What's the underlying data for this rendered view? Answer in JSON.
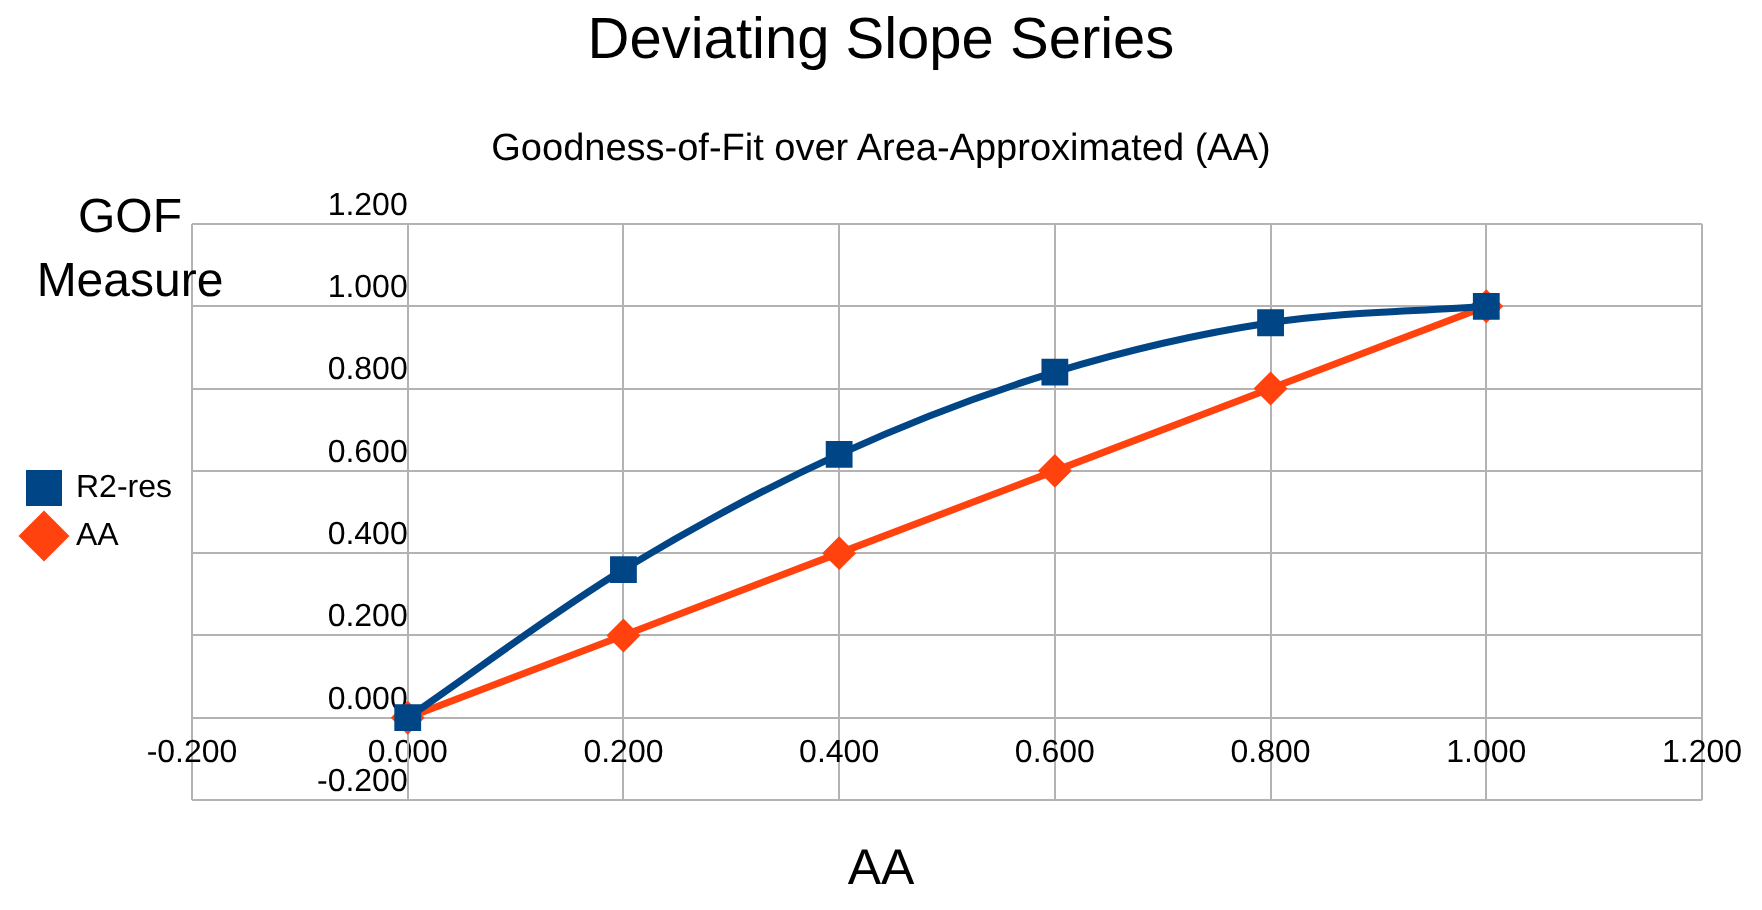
{
  "chart_data": {
    "type": "line",
    "title": "Deviating Slope Series",
    "subtitle": "Goodness-of-Fit over Area-Approximated (AA)",
    "xlabel": "AA",
    "ylabel": "GOF Measure",
    "x": [
      0,
      0.2,
      0.4,
      0.6,
      0.8,
      1.0
    ],
    "series": [
      {
        "name": "R2-res",
        "color": "#004586",
        "marker": "square",
        "values": [
          0,
          0.36,
          0.64,
          0.84,
          0.96,
          1.0
        ]
      },
      {
        "name": "AA",
        "color": "#ff420e",
        "marker": "diamond",
        "values": [
          0,
          0.2,
          0.4,
          0.6,
          0.8,
          1.0
        ]
      }
    ],
    "xlim": [
      -0.2,
      1.2
    ],
    "ylim": [
      -0.2,
      1.2
    ],
    "xticks": [
      {
        "value": -0.2,
        "label": "-0.200"
      },
      {
        "value": 0,
        "label": "0.000"
      },
      {
        "value": 0.2,
        "label": "0.200"
      },
      {
        "value": 0.4,
        "label": "0.400"
      },
      {
        "value": 0.6,
        "label": "0.600"
      },
      {
        "value": 0.8,
        "label": "0.800"
      },
      {
        "value": 1.0,
        "label": "1.000"
      },
      {
        "value": 1.2,
        "label": "1.200"
      }
    ],
    "yticks": [
      {
        "value": -0.2,
        "label": "-0.200"
      },
      {
        "value": 0,
        "label": "0.000"
      },
      {
        "value": 0.2,
        "label": "0.200"
      },
      {
        "value": 0.4,
        "label": "0.400"
      },
      {
        "value": 0.6,
        "label": "0.600"
      },
      {
        "value": 0.8,
        "label": "0.800"
      },
      {
        "value": 1.0,
        "label": "1.000"
      },
      {
        "value": 1.2,
        "label": "1.200"
      }
    ],
    "grid": true,
    "legend": "left"
  }
}
